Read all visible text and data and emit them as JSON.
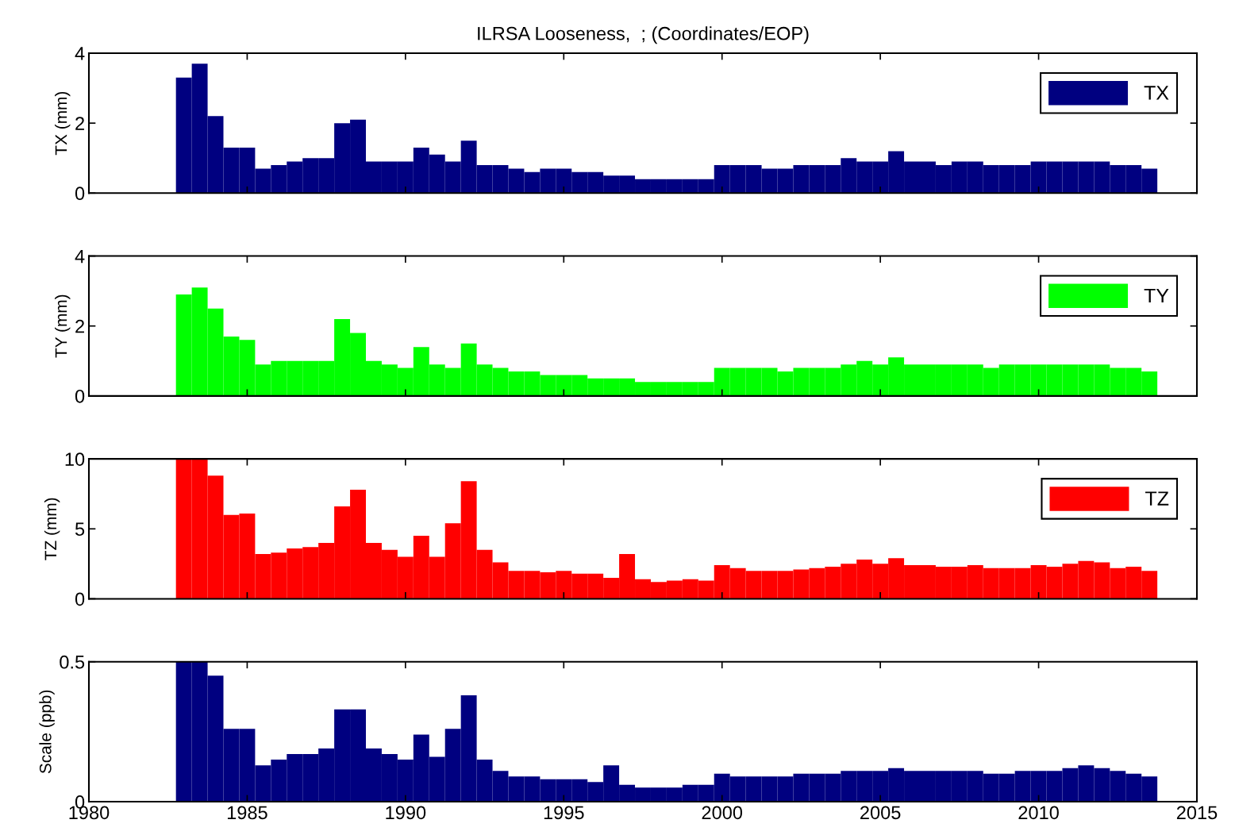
{
  "chart_data": [
    {
      "type": "bar",
      "title": "ILRSA Looseness,  ; (Coordinates/EOP)",
      "ylabel": "TX (mm)",
      "legend": "top right",
      "tick_labels": "y",
      "xlim": [
        1980,
        2015
      ],
      "xticks": [
        1980,
        1985,
        1990,
        1995,
        2000,
        2005,
        2010,
        2015
      ],
      "ylim": [
        0,
        4
      ],
      "yticks": [
        0,
        2,
        4
      ],
      "x": [
        1983.0,
        1983.5,
        1984.0,
        1984.5,
        1985.0,
        1985.5,
        1986.0,
        1986.5,
        1987.0,
        1987.5,
        1988.0,
        1988.5,
        1989.0,
        1989.5,
        1990.0,
        1990.5,
        1991.0,
        1991.5,
        1992.0,
        1992.5,
        1993.0,
        1993.5,
        1994.0,
        1994.5,
        1995.0,
        1995.5,
        1996.0,
        1996.5,
        1997.0,
        1997.5,
        1998.0,
        1998.5,
        1999.0,
        1999.5,
        2000.0,
        2000.5,
        2001.0,
        2001.5,
        2002.0,
        2002.5,
        2003.0,
        2003.5,
        2004.0,
        2004.5,
        2005.0,
        2005.5,
        2006.0,
        2006.5,
        2007.0,
        2007.5,
        2008.0,
        2008.5,
        2009.0,
        2009.5,
        2010.0,
        2010.5,
        2011.0,
        2011.5,
        2012.0,
        2012.5,
        2013.0,
        2013.5
      ],
      "series": [
        {
          "name": "TX",
          "color": "#000080",
          "values": [
            3.3,
            3.7,
            2.2,
            1.3,
            1.3,
            0.7,
            0.8,
            0.9,
            1.0,
            1.0,
            2.0,
            2.1,
            0.9,
            0.9,
            0.9,
            1.3,
            1.1,
            0.9,
            1.5,
            0.8,
            0.8,
            0.7,
            0.6,
            0.7,
            0.7,
            0.6,
            0.6,
            0.5,
            0.5,
            0.4,
            0.4,
            0.4,
            0.4,
            0.4,
            0.8,
            0.8,
            0.8,
            0.7,
            0.7,
            0.8,
            0.8,
            0.8,
            1.0,
            0.9,
            0.9,
            1.2,
            0.9,
            0.9,
            0.8,
            0.9,
            0.9,
            0.8,
            0.8,
            0.8,
            0.9,
            0.9,
            0.9,
            0.9,
            0.9,
            0.8,
            0.8,
            0.7
          ]
        }
      ]
    },
    {
      "type": "bar",
      "ylabel": "TY (mm)",
      "legend": "top right",
      "tick_labels": "y",
      "xlim": [
        1980,
        2015
      ],
      "xticks": [
        1980,
        1985,
        1990,
        1995,
        2000,
        2005,
        2010,
        2015
      ],
      "ylim": [
        0,
        4
      ],
      "yticks": [
        0,
        2,
        4
      ],
      "x": [
        1983.0,
        1983.5,
        1984.0,
        1984.5,
        1985.0,
        1985.5,
        1986.0,
        1986.5,
        1987.0,
        1987.5,
        1988.0,
        1988.5,
        1989.0,
        1989.5,
        1990.0,
        1990.5,
        1991.0,
        1991.5,
        1992.0,
        1992.5,
        1993.0,
        1993.5,
        1994.0,
        1994.5,
        1995.0,
        1995.5,
        1996.0,
        1996.5,
        1997.0,
        1997.5,
        1998.0,
        1998.5,
        1999.0,
        1999.5,
        2000.0,
        2000.5,
        2001.0,
        2001.5,
        2002.0,
        2002.5,
        2003.0,
        2003.5,
        2004.0,
        2004.5,
        2005.0,
        2005.5,
        2006.0,
        2006.5,
        2007.0,
        2007.5,
        2008.0,
        2008.5,
        2009.0,
        2009.5,
        2010.0,
        2010.5,
        2011.0,
        2011.5,
        2012.0,
        2012.5,
        2013.0,
        2013.5
      ],
      "series": [
        {
          "name": "TY",
          "color": "#00ff00",
          "values": [
            2.9,
            3.1,
            2.5,
            1.7,
            1.6,
            0.9,
            1.0,
            1.0,
            1.0,
            1.0,
            2.2,
            1.8,
            1.0,
            0.9,
            0.8,
            1.4,
            0.9,
            0.8,
            1.5,
            0.9,
            0.8,
            0.7,
            0.7,
            0.6,
            0.6,
            0.6,
            0.5,
            0.5,
            0.5,
            0.4,
            0.4,
            0.4,
            0.4,
            0.4,
            0.8,
            0.8,
            0.8,
            0.8,
            0.7,
            0.8,
            0.8,
            0.8,
            0.9,
            1.0,
            0.9,
            1.1,
            0.9,
            0.9,
            0.9,
            0.9,
            0.9,
            0.8,
            0.9,
            0.9,
            0.9,
            0.9,
            0.9,
            0.9,
            0.9,
            0.8,
            0.8,
            0.7
          ]
        }
      ]
    },
    {
      "type": "bar",
      "ylabel": "TZ (mm)",
      "legend": "top right",
      "tick_labels": "y",
      "xlim": [
        1980,
        2015
      ],
      "xticks": [
        1980,
        1985,
        1990,
        1995,
        2000,
        2005,
        2010,
        2015
      ],
      "ylim": [
        0,
        10
      ],
      "yticks": [
        0,
        5,
        10
      ],
      "x": [
        1983.0,
        1983.5,
        1984.0,
        1984.5,
        1985.0,
        1985.5,
        1986.0,
        1986.5,
        1987.0,
        1987.5,
        1988.0,
        1988.5,
        1989.0,
        1989.5,
        1990.0,
        1990.5,
        1991.0,
        1991.5,
        1992.0,
        1992.5,
        1993.0,
        1993.5,
        1994.0,
        1994.5,
        1995.0,
        1995.5,
        1996.0,
        1996.5,
        1997.0,
        1997.5,
        1998.0,
        1998.5,
        1999.0,
        1999.5,
        2000.0,
        2000.5,
        2001.0,
        2001.5,
        2002.0,
        2002.5,
        2003.0,
        2003.5,
        2004.0,
        2004.5,
        2005.0,
        2005.5,
        2006.0,
        2006.5,
        2007.0,
        2007.5,
        2008.0,
        2008.5,
        2009.0,
        2009.5,
        2010.0,
        2010.5,
        2011.0,
        2011.5,
        2012.0,
        2012.5,
        2013.0,
        2013.5
      ],
      "series": [
        {
          "name": "TZ",
          "color": "#ff0000",
          "values": [
            10,
            10,
            8.8,
            6.0,
            6.1,
            3.2,
            3.3,
            3.6,
            3.7,
            4.0,
            6.6,
            7.8,
            4.0,
            3.5,
            3.0,
            4.5,
            3.0,
            5.4,
            8.4,
            3.5,
            2.6,
            2.0,
            2.0,
            1.9,
            2.0,
            1.8,
            1.8,
            1.5,
            3.2,
            1.4,
            1.2,
            1.3,
            1.4,
            1.3,
            2.4,
            2.2,
            2.0,
            2.0,
            2.0,
            2.1,
            2.2,
            2.3,
            2.5,
            2.8,
            2.5,
            2.9,
            2.4,
            2.4,
            2.3,
            2.3,
            2.4,
            2.2,
            2.2,
            2.2,
            2.4,
            2.3,
            2.5,
            2.7,
            2.6,
            2.2,
            2.3,
            2.0
          ]
        }
      ]
    },
    {
      "type": "bar",
      "ylabel": "Scale (ppb)",
      "xlim": [
        1980,
        2015
      ],
      "xticks": [
        1980,
        1985,
        1990,
        1995,
        2000,
        2005,
        2010,
        2015
      ],
      "ylim": [
        0,
        0.5
      ],
      "yticks": [
        0,
        0.5
      ],
      "x": [
        1983.0,
        1983.5,
        1984.0,
        1984.5,
        1985.0,
        1985.5,
        1986.0,
        1986.5,
        1987.0,
        1987.5,
        1988.0,
        1988.5,
        1989.0,
        1989.5,
        1990.0,
        1990.5,
        1991.0,
        1991.5,
        1992.0,
        1992.5,
        1993.0,
        1993.5,
        1994.0,
        1994.5,
        1995.0,
        1995.5,
        1996.0,
        1996.5,
        1997.0,
        1997.5,
        1998.0,
        1998.5,
        1999.0,
        1999.5,
        2000.0,
        2000.5,
        2001.0,
        2001.5,
        2002.0,
        2002.5,
        2003.0,
        2003.5,
        2004.0,
        2004.5,
        2005.0,
        2005.5,
        2006.0,
        2006.5,
        2007.0,
        2007.5,
        2008.0,
        2008.5,
        2009.0,
        2009.5,
        2010.0,
        2010.5,
        2011.0,
        2011.5,
        2012.0,
        2012.5,
        2013.0,
        2013.5
      ],
      "series": [
        {
          "color": "#000080",
          "values": [
            0.5,
            0.5,
            0.45,
            0.26,
            0.26,
            0.13,
            0.15,
            0.17,
            0.17,
            0.19,
            0.33,
            0.33,
            0.19,
            0.17,
            0.15,
            0.24,
            0.16,
            0.26,
            0.38,
            0.15,
            0.11,
            0.09,
            0.09,
            0.08,
            0.08,
            0.08,
            0.07,
            0.13,
            0.06,
            0.05,
            0.05,
            0.05,
            0.06,
            0.06,
            0.1,
            0.09,
            0.09,
            0.09,
            0.09,
            0.1,
            0.1,
            0.1,
            0.11,
            0.11,
            0.11,
            0.12,
            0.11,
            0.11,
            0.11,
            0.11,
            0.11,
            0.1,
            0.1,
            0.11,
            0.11,
            0.11,
            0.12,
            0.13,
            0.12,
            0.11,
            0.1,
            0.09
          ]
        }
      ]
    }
  ]
}
